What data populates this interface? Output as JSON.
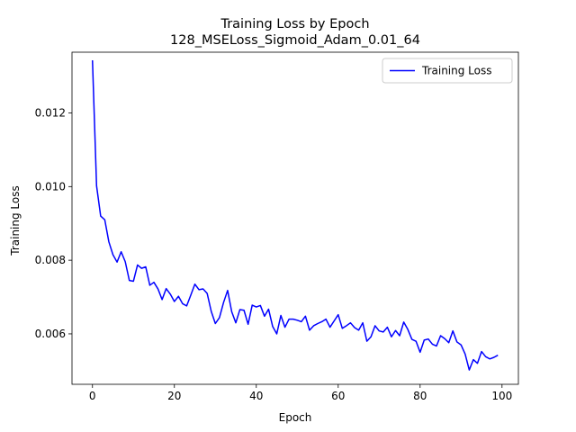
{
  "chart_data": {
    "type": "line",
    "title": "Training Loss by Epoch",
    "subtitle": "128_MSELoss_Sigmoid_Adam_0.01_64",
    "xlabel": "Epoch",
    "ylabel": "Training Loss",
    "xlim": [
      -5,
      104
    ],
    "ylim": [
      0.00463,
      0.01365
    ],
    "xticks": [
      0,
      20,
      40,
      60,
      80,
      100
    ],
    "xtick_labels": [
      "0",
      "20",
      "40",
      "60",
      "80",
      "100"
    ],
    "yticks": [
      0.006,
      0.008,
      0.01,
      0.012
    ],
    "ytick_labels": [
      "0.006",
      "0.008",
      "0.010",
      "0.012"
    ],
    "grid": false,
    "legend_position": "top-right",
    "series": [
      {
        "name": "Training Loss",
        "color": "#0000ff",
        "x": [
          0,
          1,
          2,
          3,
          4,
          5,
          6,
          7,
          8,
          9,
          10,
          11,
          12,
          13,
          14,
          15,
          16,
          17,
          18,
          19,
          20,
          21,
          22,
          23,
          24,
          25,
          26,
          27,
          28,
          29,
          30,
          31,
          32,
          33,
          34,
          35,
          36,
          37,
          38,
          39,
          40,
          41,
          42,
          43,
          44,
          45,
          46,
          47,
          48,
          49,
          50,
          51,
          52,
          53,
          54,
          55,
          56,
          57,
          58,
          59,
          60,
          61,
          62,
          63,
          64,
          65,
          66,
          67,
          68,
          69,
          70,
          71,
          72,
          73,
          74,
          75,
          76,
          77,
          78,
          79,
          80,
          81,
          82,
          83,
          84,
          85,
          86,
          87,
          88,
          89,
          90,
          91,
          92,
          93,
          94,
          95,
          96,
          97,
          98,
          99
        ],
        "values": [
          0.01343,
          0.01002,
          0.0092,
          0.0091,
          0.0085,
          0.00815,
          0.00795,
          0.00823,
          0.00796,
          0.00745,
          0.00743,
          0.00787,
          0.00778,
          0.00782,
          0.00732,
          0.0074,
          0.00722,
          0.00693,
          0.00723,
          0.00708,
          0.00688,
          0.00702,
          0.00682,
          0.00676,
          0.00705,
          0.00735,
          0.0072,
          0.00722,
          0.0071,
          0.00661,
          0.00628,
          0.00644,
          0.00685,
          0.00718,
          0.0066,
          0.0063,
          0.00666,
          0.00664,
          0.00626,
          0.00678,
          0.00673,
          0.00677,
          0.00648,
          0.00667,
          0.0062,
          0.006,
          0.0065,
          0.00618,
          0.0064,
          0.0064,
          0.00637,
          0.00633,
          0.00648,
          0.0061,
          0.00622,
          0.00628,
          0.00633,
          0.0064,
          0.00618,
          0.00635,
          0.00652,
          0.00615,
          0.00622,
          0.0063,
          0.00617,
          0.0061,
          0.0063,
          0.0058,
          0.00592,
          0.00622,
          0.00608,
          0.00605,
          0.00618,
          0.00592,
          0.00609,
          0.00595,
          0.00632,
          0.00612,
          0.00585,
          0.0058,
          0.0055,
          0.00583,
          0.00586,
          0.00572,
          0.00567,
          0.00595,
          0.00587,
          0.00576,
          0.00608,
          0.00578,
          0.0057,
          0.00545,
          0.00502,
          0.0053,
          0.0052,
          0.00552,
          0.00538,
          0.00532,
          0.00536,
          0.00542
        ]
      }
    ]
  }
}
